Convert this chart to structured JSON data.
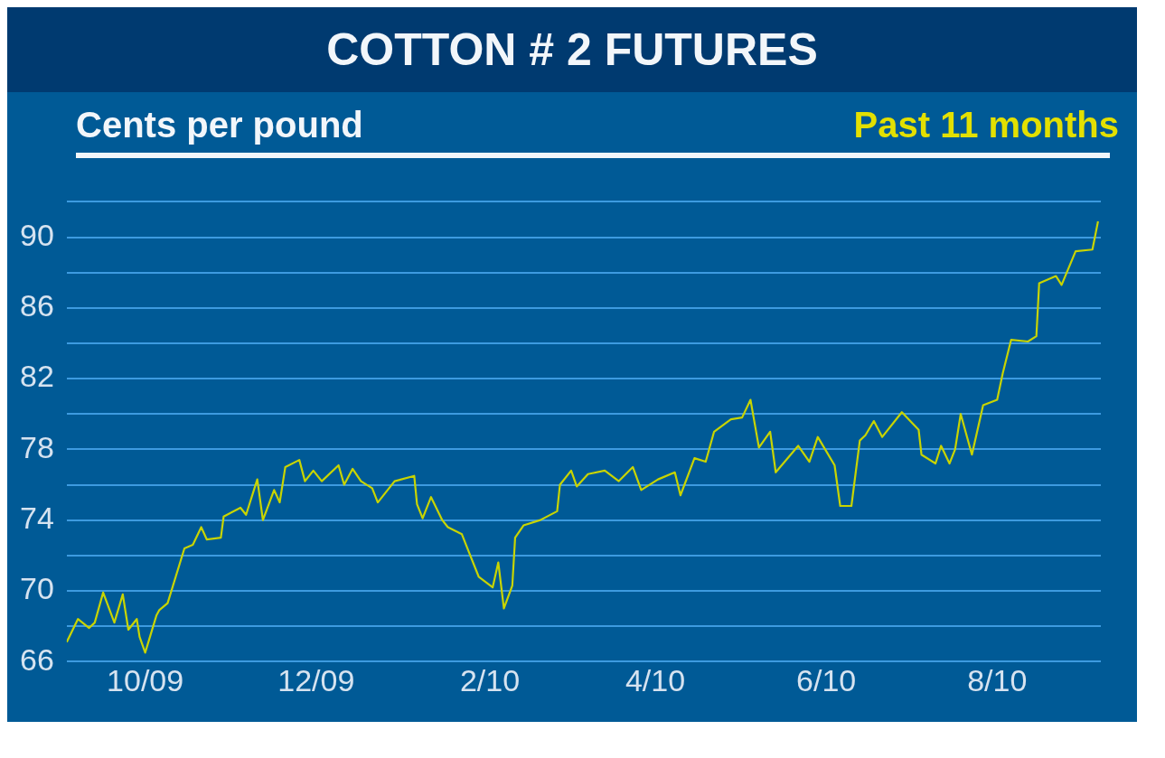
{
  "chart_data": {
    "type": "line",
    "title": "COTTON # 2 FUTURES",
    "subtitle": "Past 11 months",
    "ylabel": "Cents per pound",
    "x": [
      "2009-09-03",
      "2009-09-07",
      "2009-09-11",
      "2009-09-13",
      "2009-09-16",
      "2009-09-20",
      "2009-09-23",
      "2009-09-25",
      "2009-09-28",
      "2009-09-29",
      "2009-10-01",
      "2009-10-05",
      "2009-10-06",
      "2009-10-09",
      "2009-10-15",
      "2009-10-18",
      "2009-10-21",
      "2009-10-23",
      "2009-10-28",
      "2009-10-29",
      "2009-11-04",
      "2009-11-06",
      "2009-11-10",
      "2009-11-12",
      "2009-11-16",
      "2009-11-18",
      "2009-11-20",
      "2009-11-25",
      "2009-11-27",
      "2009-11-30",
      "2009-12-03",
      "2009-12-09",
      "2009-12-11",
      "2009-12-14",
      "2009-12-17",
      "2009-12-21",
      "2009-12-23",
      "2009-12-29",
      "2010-01-05",
      "2010-01-06",
      "2010-01-08",
      "2010-01-11",
      "2010-01-15",
      "2010-01-17",
      "2010-01-22",
      "2010-01-25",
      "2010-01-28",
      "2010-02-02",
      "2010-02-04",
      "2010-02-06",
      "2010-02-09",
      "2010-02-10",
      "2010-02-13",
      "2010-02-19",
      "2010-02-25",
      "2010-02-26",
      "2010-03-02",
      "2010-03-04",
      "2010-03-08",
      "2010-03-14",
      "2010-03-19",
      "2010-03-24",
      "2010-03-27",
      "2010-04-02",
      "2010-04-08",
      "2010-04-10",
      "2010-04-15",
      "2010-04-19",
      "2010-04-22",
      "2010-04-28",
      "2010-05-02",
      "2010-05-05",
      "2010-05-08",
      "2010-05-12",
      "2010-05-14",
      "2010-05-22",
      "2010-05-26",
      "2010-05-29",
      "2010-06-04",
      "2010-06-06",
      "2010-06-10",
      "2010-06-13",
      "2010-06-15",
      "2010-06-18",
      "2010-06-21",
      "2010-06-28",
      "2010-07-04",
      "2010-07-05",
      "2010-07-10",
      "2010-07-12",
      "2010-07-15",
      "2010-07-17",
      "2010-07-19",
      "2010-07-23",
      "2010-07-27",
      "2010-08-01",
      "2010-08-03",
      "2010-08-06",
      "2010-08-12",
      "2010-08-15",
      "2010-08-16",
      "2010-08-22",
      "2010-08-24",
      "2010-08-29",
      "2010-09-04",
      "2010-09-06"
    ],
    "series": [
      {
        "color": "#c8d400",
        "values": [
          67.1,
          68.4,
          67.9,
          68.2,
          69.9,
          68.2,
          69.8,
          67.8,
          68.4,
          67.4,
          66.5,
          68.6,
          68.9,
          69.3,
          72.4,
          72.6,
          73.6,
          72.9,
          73.0,
          74.2,
          74.7,
          74.3,
          76.3,
          74.0,
          75.7,
          75.0,
          77.0,
          77.4,
          76.2,
          76.8,
          76.2,
          77.1,
          76.0,
          76.9,
          76.2,
          75.8,
          75.0,
          76.2,
          76.5,
          74.9,
          74.1,
          75.3,
          74.0,
          73.6,
          73.2,
          72.0,
          70.8,
          70.2,
          71.6,
          69.0,
          70.3,
          73.0,
          73.7,
          74.0,
          74.5,
          76.0,
          76.8,
          75.9,
          76.6,
          76.8,
          76.2,
          77.0,
          75.7,
          76.3,
          76.7,
          75.4,
          77.5,
          77.3,
          79.0,
          79.7,
          79.8,
          80.8,
          78.1,
          79.0,
          76.7,
          78.2,
          77.3,
          78.7,
          77.1,
          74.8,
          74.8,
          78.5,
          78.8,
          79.6,
          78.7,
          80.1,
          79.1,
          77.7,
          77.2,
          78.2,
          77.2,
          78.0,
          80.0,
          77.7,
          80.5,
          80.8,
          82.3,
          84.2,
          84.1,
          84.4,
          87.4,
          87.8,
          87.3,
          89.2,
          89.3,
          90.9
        ]
      }
    ],
    "xlim": [
      "2009-09-03",
      "2010-09-07"
    ],
    "xticks": [
      {
        "value": "2009-10-01",
        "label": "10/09"
      },
      {
        "value": "2009-12-01",
        "label": "12/09"
      },
      {
        "value": "2010-02-01",
        "label": "2/10"
      },
      {
        "value": "2010-04-01",
        "label": "4/10"
      },
      {
        "value": "2010-06-01",
        "label": "6/10"
      },
      {
        "value": "2010-08-01",
        "label": "8/10"
      }
    ],
    "ylim": [
      66,
      92
    ],
    "yticks": [
      66,
      {
        "value": 68,
        "label": null
      },
      70,
      {
        "value": 72,
        "label": null
      },
      74,
      {
        "value": 76,
        "label": null
      },
      78,
      {
        "value": 80,
        "label": null
      },
      82,
      {
        "value": 84,
        "label": null
      },
      86,
      {
        "value": 88,
        "label": null
      },
      90,
      {
        "value": 92,
        "label": null
      }
    ],
    "grid": "y",
    "marker": "none",
    "line_style": "solid",
    "legend": false
  }
}
